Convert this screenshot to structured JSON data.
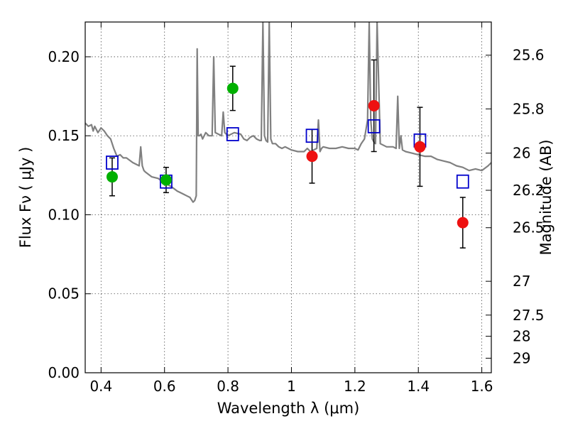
{
  "chart_data": {
    "type": "scatter",
    "title": "",
    "xlabel": "Wavelength  λ (μm)",
    "ylabel": "Flux  Fν  ( μJy )",
    "ylabel_right": "Magnitude (AB)",
    "xlim": [
      0.35,
      1.63
    ],
    "ylim": [
      0.0,
      0.222
    ],
    "grid": true,
    "x_ticks": [
      0.4,
      0.6,
      0.8,
      1.0,
      1.2,
      1.4,
      1.6
    ],
    "x_tick_labels": [
      "0.4",
      "0.6",
      "0.8",
      "1",
      "1.2",
      "1.4",
      "1.6"
    ],
    "y_ticks": [
      0.0,
      0.05,
      0.1,
      0.15,
      0.2
    ],
    "y_tick_labels": [
      "0.00",
      "0.05",
      "0.10",
      "0.15",
      "0.20"
    ],
    "right_ticks": [
      "25.6",
      "25.8",
      "26",
      "26.2",
      "26.5",
      "27",
      "27.5",
      "28",
      "29"
    ],
    "right_tick_flux": [
      0.201,
      0.167,
      0.139,
      0.1155,
      0.0918,
      0.0579,
      0.0365,
      0.0231,
      0.0092
    ],
    "series": [
      {
        "style": "line",
        "color": "#808080",
        "x": [
          0.35,
          0.36,
          0.37,
          0.375,
          0.38,
          0.39,
          0.4,
          0.41,
          0.42,
          0.43,
          0.44,
          0.45,
          0.46,
          0.47,
          0.48,
          0.5,
          0.52,
          0.525,
          0.53,
          0.535,
          0.54,
          0.56,
          0.58,
          0.6,
          0.62,
          0.64,
          0.66,
          0.67,
          0.68,
          0.69,
          0.695,
          0.7,
          0.703,
          0.706,
          0.71,
          0.715,
          0.72,
          0.73,
          0.74,
          0.75,
          0.755,
          0.76,
          0.77,
          0.78,
          0.785,
          0.79,
          0.8,
          0.82,
          0.84,
          0.85,
          0.86,
          0.87,
          0.88,
          0.89,
          0.9,
          0.905,
          0.91,
          0.915,
          0.92,
          0.925,
          0.93,
          0.935,
          0.94,
          0.945,
          0.95,
          0.96,
          0.97,
          0.98,
          1.0,
          1.02,
          1.04,
          1.05,
          1.06,
          1.07,
          1.08,
          1.085,
          1.09,
          1.095,
          1.1,
          1.12,
          1.14,
          1.16,
          1.18,
          1.2,
          1.21,
          1.22,
          1.23,
          1.24,
          1.245,
          1.25,
          1.255,
          1.26,
          1.265,
          1.27,
          1.28,
          1.3,
          1.32,
          1.33,
          1.335,
          1.34,
          1.345,
          1.35,
          1.36,
          1.38,
          1.4,
          1.42,
          1.44,
          1.46,
          1.48,
          1.5,
          1.52,
          1.54,
          1.56,
          1.58,
          1.6,
          1.62,
          1.63
        ],
        "y": [
          0.158,
          0.156,
          0.157,
          0.153,
          0.156,
          0.152,
          0.155,
          0.153,
          0.15,
          0.148,
          0.142,
          0.137,
          0.138,
          0.136,
          0.136,
          0.133,
          0.131,
          0.143,
          0.131,
          0.128,
          0.127,
          0.124,
          0.123,
          0.12,
          0.118,
          0.115,
          0.113,
          0.112,
          0.111,
          0.108,
          0.109,
          0.112,
          0.205,
          0.15,
          0.15,
          0.151,
          0.148,
          0.152,
          0.15,
          0.15,
          0.2,
          0.152,
          0.151,
          0.15,
          0.165,
          0.152,
          0.15,
          0.152,
          0.151,
          0.148,
          0.147,
          0.149,
          0.15,
          0.148,
          0.147,
          0.147,
          0.222,
          0.15,
          0.147,
          0.146,
          0.222,
          0.148,
          0.145,
          0.145,
          0.145,
          0.143,
          0.142,
          0.143,
          0.141,
          0.14,
          0.14,
          0.142,
          0.14,
          0.141,
          0.142,
          0.16,
          0.14,
          0.142,
          0.143,
          0.142,
          0.142,
          0.143,
          0.142,
          0.142,
          0.141,
          0.145,
          0.148,
          0.16,
          0.222,
          0.16,
          0.148,
          0.146,
          0.145,
          0.222,
          0.145,
          0.143,
          0.143,
          0.142,
          0.175,
          0.142,
          0.15,
          0.141,
          0.14,
          0.139,
          0.138,
          0.137,
          0.137,
          0.135,
          0.134,
          0.133,
          0.131,
          0.13,
          0.128,
          0.129,
          0.128,
          0.131,
          0.133
        ]
      },
      {
        "style": "markers",
        "marker": "square",
        "color": "#0000cc",
        "x": [
          0.435,
          0.605,
          0.815,
          1.065,
          1.26,
          1.405,
          1.54
        ],
        "y": [
          0.133,
          0.121,
          0.151,
          0.15,
          0.156,
          0.147,
          0.121
        ]
      },
      {
        "style": "markers",
        "marker": "circle",
        "color": "#00b000",
        "x": [
          0.435,
          0.605,
          0.815
        ],
        "y": [
          0.124,
          0.122,
          0.18
        ],
        "err": [
          0.012,
          0.008,
          0.014
        ]
      },
      {
        "style": "markers",
        "marker": "circle",
        "color": "#ee1111",
        "x": [
          1.065,
          1.26,
          1.405,
          1.54
        ],
        "y": [
          0.137,
          0.169,
          0.143,
          0.095
        ],
        "err": [
          0.017,
          0.029,
          0.025,
          0.016
        ]
      }
    ]
  }
}
